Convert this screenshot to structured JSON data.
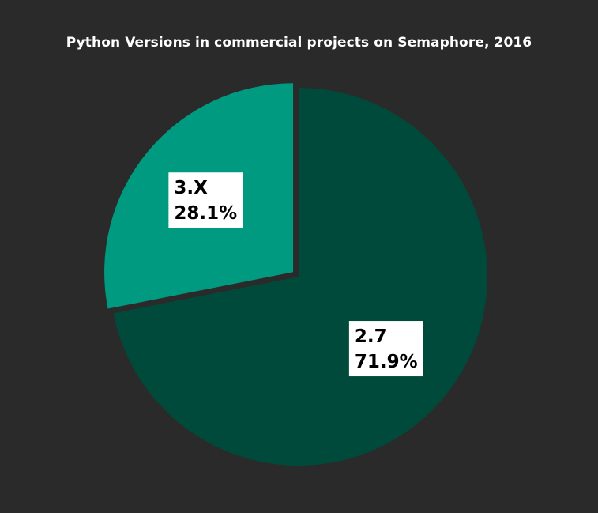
{
  "chart_data": {
    "type": "pie",
    "title": "Python Versions in commercial projects on Semaphore, 2016",
    "slices": [
      {
        "label": "2.7",
        "value": 71.9,
        "value_label": "71.9%",
        "color": "#004a3b"
      },
      {
        "label": "3.X",
        "value": 28.1,
        "value_label": "28.1%",
        "color": "#009a80"
      }
    ],
    "exploded_slice": "3.X",
    "legend": "none",
    "background": "#2a2a2a"
  }
}
